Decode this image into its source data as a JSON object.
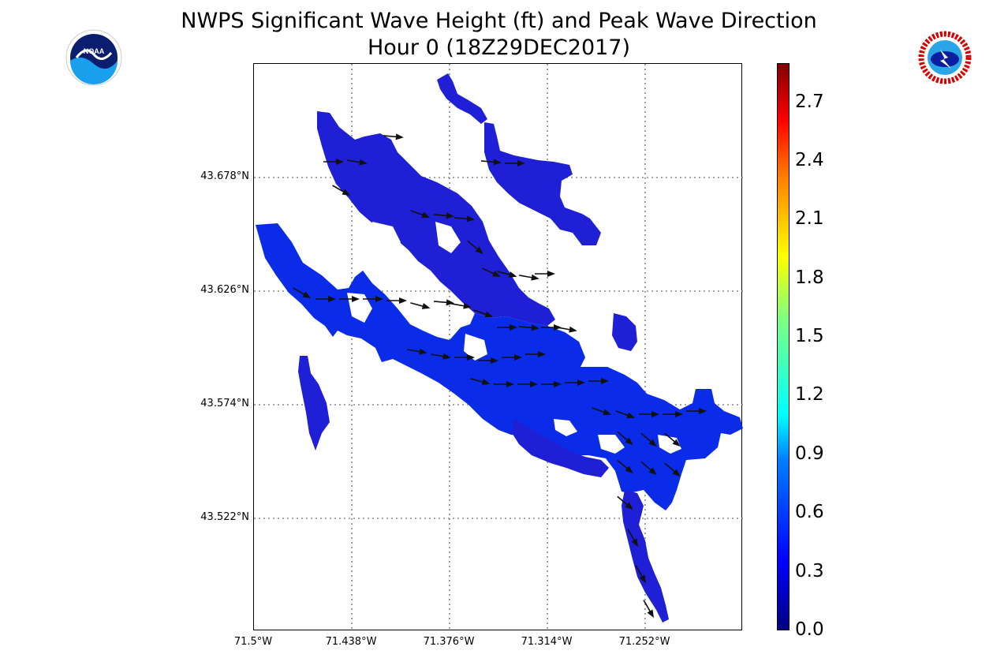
{
  "title": {
    "line1": "NWPS Significant Wave Height (ft) and Peak Wave Direction",
    "line2": "Hour 0 (18Z29DEC2017)"
  },
  "logos": {
    "left": {
      "icon": "noaa-logo",
      "text": "NOAA"
    },
    "right": {
      "icon": "nws-logo"
    }
  },
  "map": {
    "lat_labels": [
      "43.678°N",
      "43.626°N",
      "43.574°N",
      "43.522°N"
    ],
    "lon_labels": [
      "71.5°W",
      "71.438°W",
      "71.376°W",
      "71.314°W",
      "71.252°W"
    ],
    "gridlines": "dotted",
    "water_color": "#1f1fd6",
    "water_color_deep": "#0a2be8",
    "arrow_color": "#111111"
  },
  "colorbar": {
    "ticks": [
      "2.7",
      "2.4",
      "2.1",
      "1.8",
      "1.5",
      "1.2",
      "0.9",
      "0.6",
      "0.3",
      "0.0"
    ],
    "range": [
      0.0,
      2.9
    ]
  }
}
